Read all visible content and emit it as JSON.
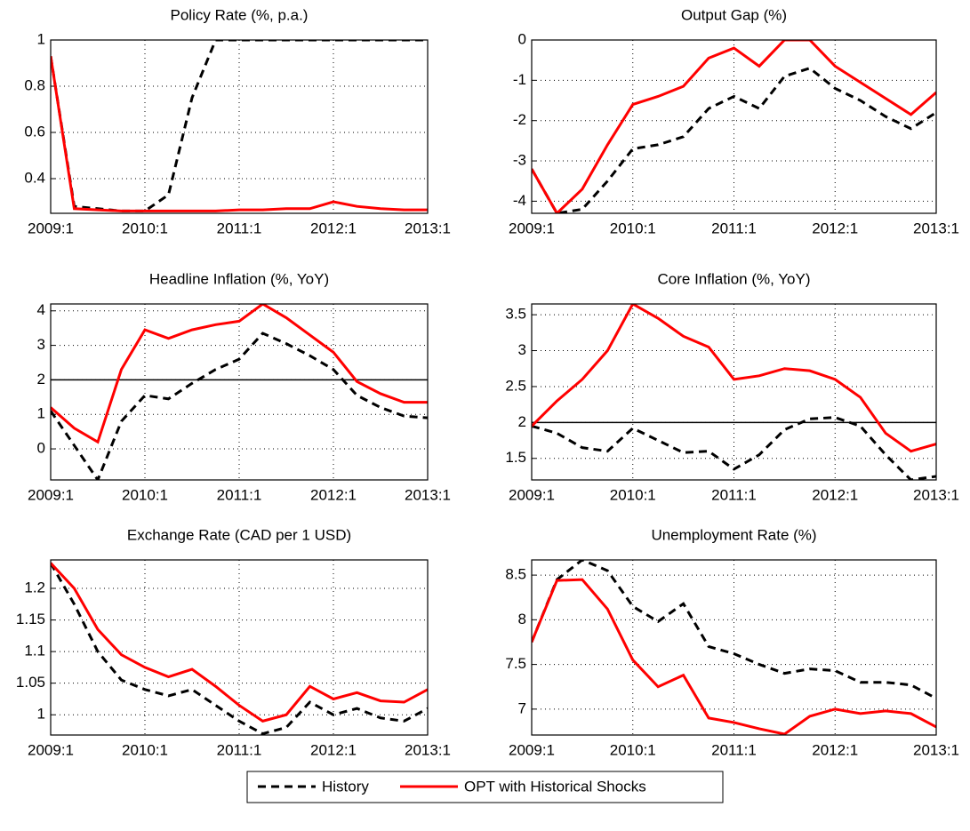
{
  "chart_data": [
    {
      "type": "line",
      "title": "Policy Rate (%, p.a.)",
      "categories": [
        "2009:1",
        null,
        null,
        null,
        "2010:1",
        null,
        null,
        null,
        "2011:1",
        null,
        null,
        null,
        "2012:1",
        null,
        null,
        null,
        "2013:1"
      ],
      "ylim": [
        0.25,
        1
      ],
      "yticks": [
        0.4,
        0.6,
        0.8,
        1
      ],
      "grid": true,
      "series": [
        {
          "name": "History",
          "color": "#000000",
          "style": "dashed",
          "values": [
            0.93,
            0.28,
            0.27,
            0.26,
            0.26,
            0.33,
            0.75,
            1,
            1,
            1,
            1,
            1,
            1,
            1,
            1,
            1,
            1
          ]
        },
        {
          "name": "OPT with Historical Shocks",
          "color": "#ff0000",
          "style": "solid",
          "values": [
            0.93,
            0.27,
            0.265,
            0.26,
            0.26,
            0.26,
            0.26,
            0.26,
            0.265,
            0.265,
            0.27,
            0.27,
            0.3,
            0.28,
            0.27,
            0.265,
            0.265
          ]
        }
      ]
    },
    {
      "type": "line",
      "title": "Output Gap (%)",
      "categories": [
        "2009:1",
        null,
        null,
        null,
        "2010:1",
        null,
        null,
        null,
        "2011:1",
        null,
        null,
        null,
        "2012:1",
        null,
        null,
        null,
        "2013:1"
      ],
      "ylim": [
        -4.3,
        0
      ],
      "yticks": [
        -4,
        -3,
        -2,
        -1,
        0
      ],
      "grid": true,
      "series": [
        {
          "name": "History",
          "color": "#000000",
          "style": "dashed",
          "values": [
            -3.2,
            -4.3,
            -4.2,
            -3.5,
            -2.7,
            -2.6,
            -2.4,
            -1.7,
            -1.4,
            -1.7,
            -0.9,
            -0.7,
            -1.2,
            -1.5,
            -1.9,
            -2.2,
            -1.8
          ]
        },
        {
          "name": "OPT with Historical Shocks",
          "color": "#ff0000",
          "style": "solid",
          "values": [
            -3.2,
            -4.3,
            -3.7,
            -2.6,
            -1.6,
            -1.4,
            -1.15,
            -0.45,
            -0.2,
            -0.65,
            0,
            0,
            -0.65,
            -1.05,
            -1.45,
            -1.85,
            -1.3
          ]
        }
      ]
    },
    {
      "type": "line",
      "title": "Headline Inflation (%, YoY)",
      "categories": [
        "2009:1",
        null,
        null,
        null,
        "2010:1",
        null,
        null,
        null,
        "2011:1",
        null,
        null,
        null,
        "2012:1",
        null,
        null,
        null,
        "2013:1"
      ],
      "ylim": [
        -0.9,
        4.2
      ],
      "yticks": [
        0,
        1,
        2,
        3,
        4
      ],
      "grid": true,
      "reference_line": 2,
      "series": [
        {
          "name": "History",
          "color": "#000000",
          "style": "dashed",
          "values": [
            1.1,
            0.1,
            -0.9,
            0.8,
            1.55,
            1.45,
            1.9,
            2.3,
            2.6,
            3.35,
            3.05,
            2.7,
            2.3,
            1.55,
            1.2,
            0.95,
            0.9
          ]
        },
        {
          "name": "OPT with Historical Shocks",
          "color": "#ff0000",
          "style": "solid",
          "values": [
            1.2,
            0.6,
            0.2,
            2.3,
            3.45,
            3.2,
            3.45,
            3.6,
            3.7,
            4.2,
            3.8,
            3.3,
            2.8,
            1.95,
            1.6,
            1.35,
            1.35
          ]
        }
      ]
    },
    {
      "type": "line",
      "title": "Core Inflation (%, YoY)",
      "categories": [
        "2009:1",
        null,
        null,
        null,
        "2010:1",
        null,
        null,
        null,
        "2011:1",
        null,
        null,
        null,
        "2012:1",
        null,
        null,
        null,
        "2013:1"
      ],
      "ylim": [
        1.2,
        3.65
      ],
      "yticks": [
        1.5,
        2,
        2.5,
        3,
        3.5
      ],
      "grid": true,
      "reference_line": 2,
      "series": [
        {
          "name": "History",
          "color": "#000000",
          "style": "dashed",
          "values": [
            1.95,
            1.85,
            1.65,
            1.6,
            1.92,
            1.75,
            1.58,
            1.6,
            1.35,
            1.55,
            1.9,
            2.05,
            2.07,
            1.95,
            1.55,
            1.2,
            1.25
          ]
        },
        {
          "name": "OPT with Historical Shocks",
          "color": "#ff0000",
          "style": "solid",
          "values": [
            1.95,
            2.3,
            2.6,
            3.0,
            3.65,
            3.45,
            3.2,
            3.05,
            2.6,
            2.65,
            2.75,
            2.72,
            2.6,
            2.35,
            1.85,
            1.6,
            1.7
          ]
        }
      ]
    },
    {
      "type": "line",
      "title": "Exchange Rate (CAD per 1 USD)",
      "categories": [
        "2009:1",
        null,
        null,
        null,
        "2010:1",
        null,
        null,
        null,
        "2011:1",
        null,
        null,
        null,
        "2012:1",
        null,
        null,
        null,
        "2013:1"
      ],
      "ylim": [
        0.968,
        1.245
      ],
      "yticks": [
        1,
        1.05,
        1.1,
        1.15,
        1.2
      ],
      "grid": true,
      "series": [
        {
          "name": "History",
          "color": "#000000",
          "style": "dashed",
          "values": [
            1.24,
            1.175,
            1.1,
            1.055,
            1.04,
            1.03,
            1.04,
            1.015,
            0.99,
            0.97,
            0.98,
            1.02,
            1.0,
            1.01,
            0.995,
            0.99,
            1.01
          ]
        },
        {
          "name": "OPT with Historical Shocks",
          "color": "#ff0000",
          "style": "solid",
          "values": [
            1.24,
            1.2,
            1.135,
            1.095,
            1.075,
            1.06,
            1.072,
            1.045,
            1.015,
            0.99,
            1.0,
            1.045,
            1.025,
            1.035,
            1.022,
            1.02,
            1.04
          ]
        }
      ]
    },
    {
      "type": "line",
      "title": "Unemployment Rate (%)",
      "categories": [
        "2009:1",
        null,
        null,
        null,
        "2010:1",
        null,
        null,
        null,
        "2011:1",
        null,
        null,
        null,
        "2012:1",
        null,
        null,
        null,
        "2013:1"
      ],
      "ylim": [
        6.71,
        8.67
      ],
      "yticks": [
        7,
        7.5,
        8,
        8.5
      ],
      "grid": true,
      "series": [
        {
          "name": "History",
          "color": "#000000",
          "style": "dashed",
          "values": [
            7.75,
            8.45,
            8.67,
            8.55,
            8.15,
            7.98,
            8.18,
            7.7,
            7.62,
            7.5,
            7.4,
            7.45,
            7.43,
            7.3,
            7.3,
            7.27,
            7.12
          ]
        },
        {
          "name": "OPT with Historical Shocks",
          "color": "#ff0000",
          "style": "solid",
          "values": [
            7.75,
            8.44,
            8.45,
            8.12,
            7.55,
            7.25,
            7.38,
            6.9,
            6.85,
            6.78,
            6.72,
            6.92,
            7.0,
            6.95,
            6.98,
            6.95,
            6.8
          ]
        }
      ]
    }
  ]
}
